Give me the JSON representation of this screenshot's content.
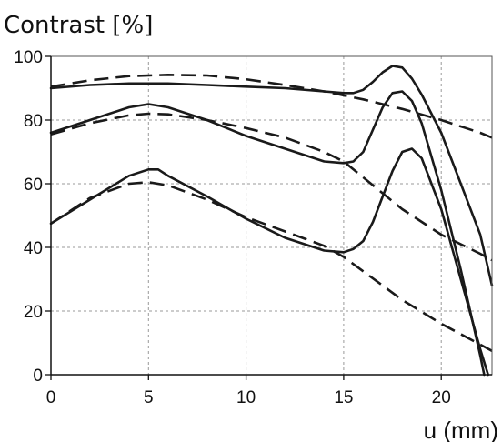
{
  "chart_data": {
    "type": "line",
    "title": "",
    "ylabel": "Contrast [%]",
    "xlabel": "u (mm)",
    "xlim": [
      0,
      22.6
    ],
    "ylim": [
      0,
      100
    ],
    "xticks": [
      0,
      5,
      10,
      15,
      20
    ],
    "yticks": [
      0,
      20,
      40,
      60,
      80,
      100
    ],
    "grid": true,
    "line_color": "#1a1a1a",
    "grid_color": "#9a9a9a",
    "series": [
      {
        "style": "solid",
        "x": [
          0,
          2,
          4,
          5,
          6,
          8,
          10,
          12,
          14,
          15,
          15.5,
          16,
          16.5,
          17,
          17.5,
          18,
          18.5,
          19,
          20,
          21,
          22,
          22.6
        ],
        "y": [
          90,
          91,
          91.5,
          91.5,
          91.5,
          91,
          90.5,
          90,
          89,
          88.5,
          88.5,
          89.5,
          92,
          95,
          97,
          96.5,
          93,
          88,
          76,
          60,
          44,
          28
        ]
      },
      {
        "style": "solid",
        "x": [
          0,
          2,
          4,
          5,
          6,
          8,
          10,
          12,
          14,
          15,
          15.5,
          16,
          16.5,
          17,
          17.5,
          18,
          18.5,
          19,
          20,
          21,
          22,
          22.2
        ],
        "y": [
          76,
          80,
          84,
          85,
          84,
          80,
          75,
          71,
          67,
          66.5,
          67,
          70,
          77,
          84,
          88.5,
          89,
          86,
          79,
          58,
          33,
          6,
          0
        ]
      },
      {
        "style": "solid",
        "x": [
          0,
          2,
          4,
          5,
          5.5,
          6,
          8,
          10,
          12,
          14,
          15,
          15.5,
          16,
          16.5,
          17,
          17.5,
          18,
          18.5,
          19,
          20,
          21,
          22,
          22.4
        ],
        "y": [
          47.5,
          55,
          62.5,
          64.5,
          64.5,
          62.5,
          56,
          49,
          43,
          39,
          38.5,
          39.5,
          42,
          48,
          56,
          64,
          70,
          71,
          68,
          52,
          30,
          8,
          0
        ]
      },
      {
        "style": "dashed",
        "x": [
          0,
          2,
          4,
          6,
          8,
          10,
          12,
          14,
          16,
          18,
          20,
          22,
          22.6
        ],
        "y": [
          90.5,
          92.5,
          93.8,
          94.2,
          94,
          92.8,
          91,
          89,
          86.5,
          83.5,
          80,
          76,
          74.5
        ]
      },
      {
        "style": "dashed",
        "x": [
          0,
          2,
          4,
          5,
          6,
          8,
          10,
          12,
          14,
          15,
          16,
          18,
          20,
          22,
          22.6
        ],
        "y": [
          75.5,
          79,
          81.5,
          82,
          81.8,
          80,
          77.5,
          74.5,
          70,
          67,
          62,
          52,
          44,
          38,
          36
        ]
      },
      {
        "style": "dashed",
        "x": [
          0,
          2,
          4,
          5,
          6,
          8,
          10,
          12,
          14,
          15,
          16,
          18,
          20,
          22,
          22.6
        ],
        "y": [
          47.5,
          55.5,
          60,
          60.5,
          59.5,
          55,
          49.5,
          45,
          40.5,
          37,
          32.5,
          23.5,
          16,
          9.5,
          7.5
        ]
      }
    ]
  }
}
